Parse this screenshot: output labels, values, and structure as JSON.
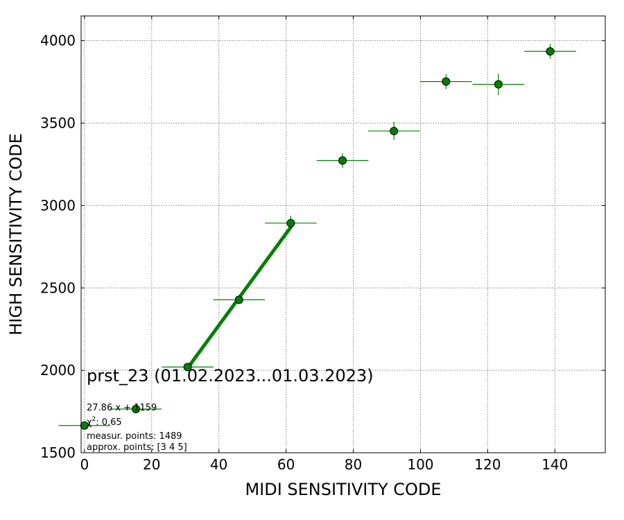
{
  "chart_data": {
    "type": "scatter",
    "title": "",
    "xlabel": "MIDI SENSITIVITY CODE",
    "ylabel": "HIGH SENSITIVITY CODE",
    "xlim": [
      -1,
      155
    ],
    "ylim": [
      1500,
      4150
    ],
    "xticks": [
      0,
      20,
      40,
      60,
      80,
      100,
      120,
      140
    ],
    "yticks": [
      1500,
      2000,
      2500,
      3000,
      3500,
      4000
    ],
    "grid": true,
    "colors": {
      "points": "#008000",
      "edge": "#000000",
      "fit_line": "#008000",
      "grid": "#808080"
    },
    "series": [
      {
        "x": [
          0,
          15.3,
          30.7,
          46,
          61.4,
          76.8,
          92.1,
          107.6,
          123.2,
          138.6
        ],
        "y": [
          1665,
          1765,
          2020,
          2428,
          2893,
          3273,
          3452,
          3752,
          3735,
          3935
        ],
        "xerr": [
          7.7,
          7.7,
          7.7,
          7.7,
          7.7,
          7.7,
          7.7,
          7.7,
          7.7,
          7.7
        ],
        "yerr": [
          8,
          10,
          12,
          25,
          45,
          45,
          55,
          45,
          65,
          45
        ]
      }
    ],
    "fit_line": {
      "x": [
        30.7,
        61.4
      ],
      "y": [
        2014,
        2869
      ]
    },
    "annotations": {
      "title": "prst_23 (01.02.2023...01.03.2023)",
      "equation": "27.86 x + 1159",
      "chi2_symbol": "χ",
      "chi2_exp": "2",
      "chi2_value": ": 0.65",
      "measur": "measur. points: 1489",
      "approx": "approx. points: [3 4 5]"
    }
  }
}
